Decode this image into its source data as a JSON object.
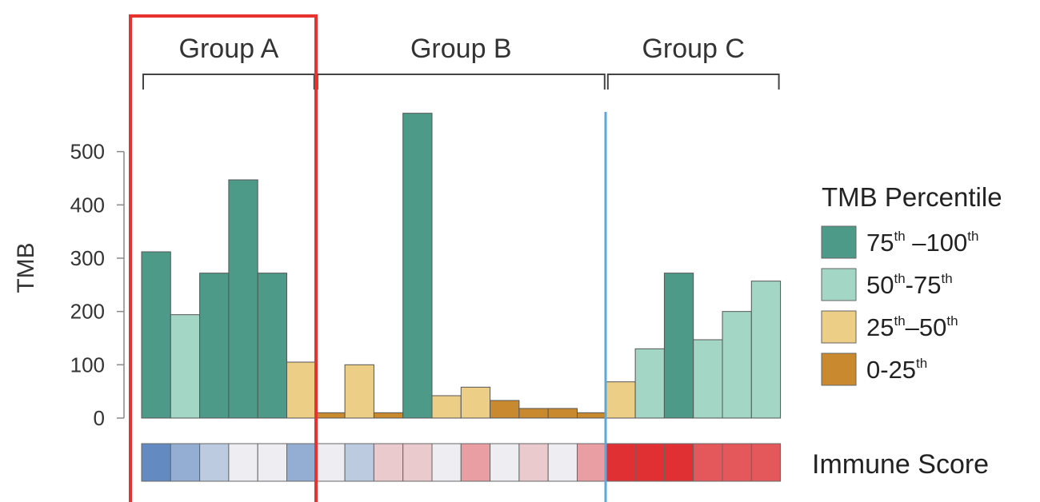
{
  "chart_data": {
    "type": "bar",
    "ylabel": "TMB",
    "ylim": [
      0,
      600
    ],
    "yticks": [
      0,
      100,
      200,
      300,
      400,
      500
    ],
    "colors": {
      "75th-100th": "#4e9a88",
      "50th-75th": "#a3d6c4",
      "25th-50th": "#ecce86",
      "0-25th": "#c9892f"
    },
    "groups": [
      {
        "label": "Group A",
        "bars": [
          0,
          5
        ]
      },
      {
        "label": "Group B",
        "bars": [
          6,
          15
        ]
      },
      {
        "label": "Group C",
        "bars": [
          16,
          21
        ]
      }
    ],
    "bars": [
      {
        "value": 312,
        "percentile": "75th-100th",
        "immune_score": -0.85
      },
      {
        "value": 194,
        "percentile": "50th-75th",
        "immune_score": -0.55
      },
      {
        "value": 272,
        "percentile": "75th-100th",
        "immune_score": -0.3
      },
      {
        "value": 447,
        "percentile": "75th-100th",
        "immune_score": 0.0
      },
      {
        "value": 272,
        "percentile": "75th-100th",
        "immune_score": 0.0
      },
      {
        "value": 105,
        "percentile": "25th-50th",
        "immune_score": -0.55
      },
      {
        "value": 10,
        "percentile": "0-25th",
        "immune_score": 0.0
      },
      {
        "value": 100,
        "percentile": "25th-50th",
        "immune_score": -0.3
      },
      {
        "value": 10,
        "percentile": "0-25th",
        "immune_score": 0.18
      },
      {
        "value": 572,
        "percentile": "75th-100th",
        "immune_score": 0.18
      },
      {
        "value": 42,
        "percentile": "25th-50th",
        "immune_score": 0.0
      },
      {
        "value": 58,
        "percentile": "25th-50th",
        "immune_score": 0.4
      },
      {
        "value": 33,
        "percentile": "0-25th",
        "immune_score": 0.0
      },
      {
        "value": 18,
        "percentile": "0-25th",
        "immune_score": 0.18
      },
      {
        "value": 18,
        "percentile": "0-25th",
        "immune_score": 0.0
      },
      {
        "value": 10,
        "percentile": "0-25th",
        "immune_score": 0.4
      },
      {
        "value": 68,
        "percentile": "25th-50th",
        "immune_score": 0.95
      },
      {
        "value": 130,
        "percentile": "50th-75th",
        "immune_score": 0.95
      },
      {
        "value": 272,
        "percentile": "75th-100th",
        "immune_score": 0.95
      },
      {
        "value": 147,
        "percentile": "50th-75th",
        "immune_score": 0.75
      },
      {
        "value": 200,
        "percentile": "50th-75th",
        "immune_score": 0.75
      },
      {
        "value": 257,
        "percentile": "50th-75th",
        "immune_score": 0.75
      }
    ],
    "legend": {
      "title": "TMB Percentile",
      "placement": "right",
      "entries": [
        {
          "key": "75th-100th",
          "parts": [
            [
              "75",
              "th"
            ],
            [
              " –100",
              "th"
            ]
          ]
        },
        {
          "key": "50th-75th",
          "parts": [
            [
              "50",
              "th"
            ],
            [
              "-75",
              "th"
            ]
          ]
        },
        {
          "key": "25th-50th",
          "parts": [
            [
              "25",
              "th"
            ],
            [
              "–50",
              "th"
            ]
          ]
        },
        {
          "key": "0-25th",
          "parts": [
            [
              "0-25",
              "th"
            ]
          ]
        }
      ]
    },
    "heatmap_label": "Immune Score",
    "heatmap_colors": {
      "low": "#4a78b8",
      "mid": "#eeeef2",
      "high": "#e0262a"
    },
    "annotations": {
      "highlight_box_color": "#e8322e",
      "vertical_line_color": "#5aa8dc"
    }
  }
}
